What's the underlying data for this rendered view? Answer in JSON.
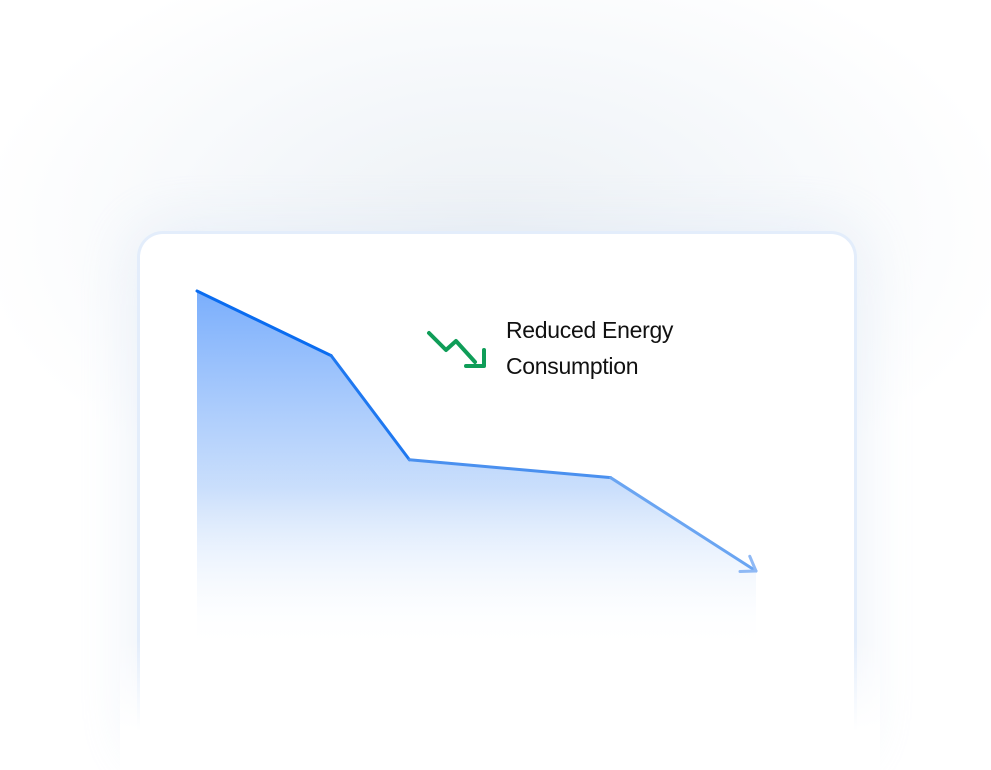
{
  "chart_data": {
    "type": "area",
    "title": "",
    "xlabel": "",
    "ylabel": "",
    "x": [
      0,
      24,
      38,
      74,
      100
    ],
    "values": [
      100,
      82,
      53,
      48,
      22
    ],
    "ylim": [
      0,
      100
    ],
    "grid": false,
    "line_end": "arrow",
    "colors": {
      "line_start": "#0a6cf0",
      "line_end": "#8fb9f5",
      "fill": "#7aaefc"
    }
  },
  "annotation": {
    "line1": "Reduced Energy",
    "line2": "Consumption",
    "icon": "trending-down-icon",
    "icon_color": "#0f9d58"
  }
}
